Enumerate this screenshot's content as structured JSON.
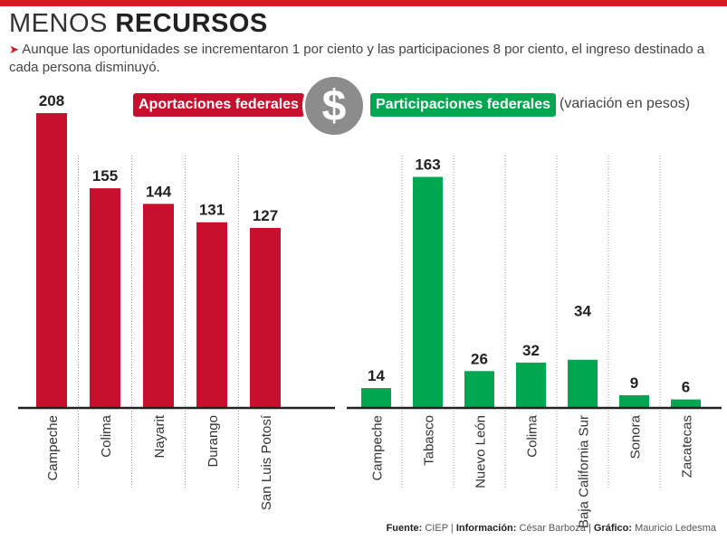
{
  "header": {
    "title_light": "MENOS",
    "title_bold": "RECURSOS",
    "subtitle": "Aunque las oportunidades se incrementaron 1 por ciento y las participaciones 8 por ciento, el ingreso destinado a cada persona disminuyó."
  },
  "legend": {
    "aportaciones": "Aportaciones federales",
    "participaciones": "Participaciones federales",
    "coin_symbol": "$",
    "unit": "(variación en pesos)"
  },
  "colors": {
    "red": "#c8102e",
    "green": "#00a650",
    "accent": "#d71920"
  },
  "chart_data": [
    {
      "type": "bar",
      "title": "Aportaciones federales",
      "categories": [
        "Campeche",
        "Colima",
        "Nayarit",
        "Durango",
        "San Luis Potosí"
      ],
      "values": [
        208,
        155,
        144,
        131,
        127
      ],
      "ylim": [
        0,
        210
      ],
      "grid": false
    },
    {
      "type": "bar",
      "title": "Participaciones federales",
      "categories": [
        "Campeche",
        "Tabasco",
        "Nuevo León",
        "Colima",
        "Baja California Sur",
        "Sonora",
        "Zacatecas"
      ],
      "values": [
        14,
        163,
        26,
        32,
        34,
        9,
        6
      ],
      "ylim": [
        0,
        210
      ],
      "grid": false
    }
  ],
  "credits": {
    "fuente_label": "Fuente:",
    "fuente": "CIEP",
    "info_label": "Información:",
    "info": "César Barboza",
    "grafico_label": "Gráfico:",
    "grafico": "Mauricio Ledesma"
  }
}
